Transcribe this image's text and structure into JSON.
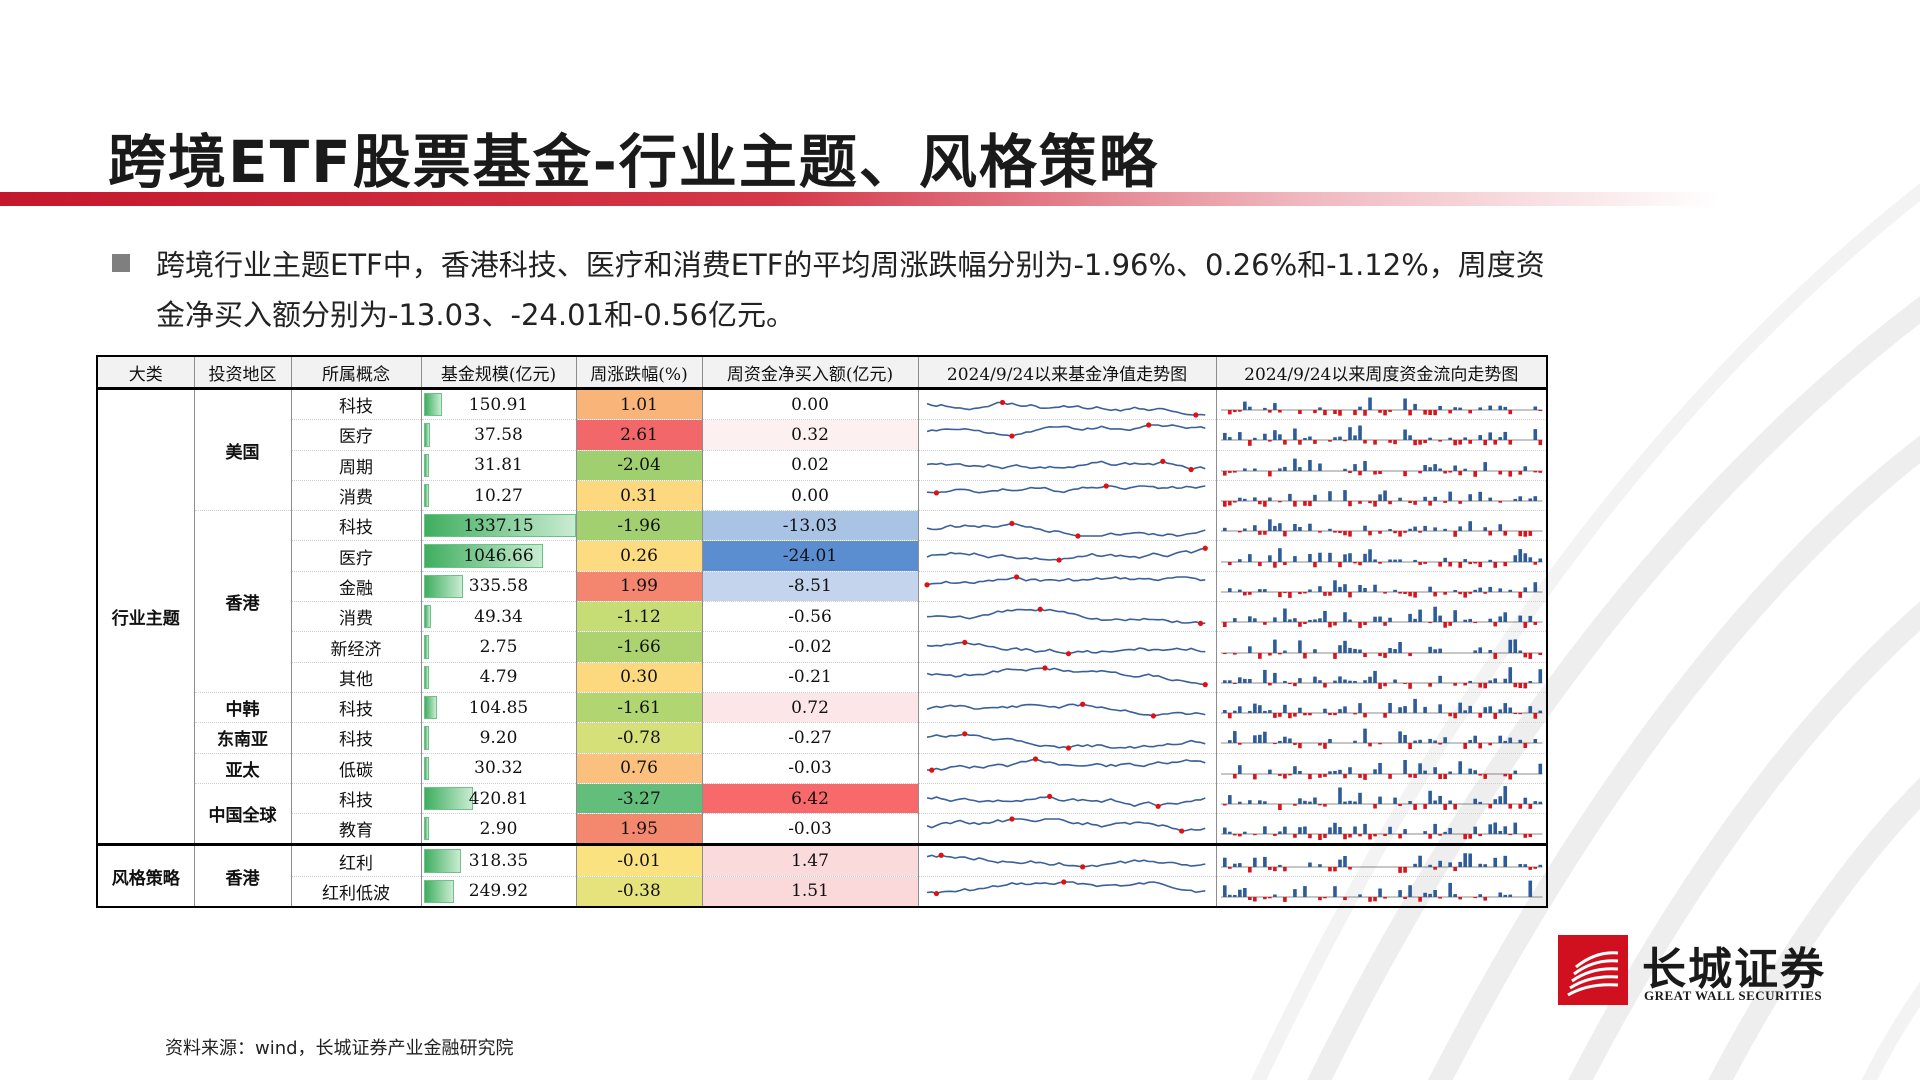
{
  "title": "跨境ETF股票基金-行业主题、风格策略",
  "bullet": "跨境行业主题ETF中，香港科技、医疗和消费ETF的平均周涨跌幅分别为-1.96%、0.26%和-1.12%，周度资金净买入额分别为-13.03、-24.01和-0.56亿元。",
  "table": {
    "headers": [
      "大类",
      "投资地区",
      "所属概念",
      "基金规模(亿元)",
      "周涨跌幅(%)",
      "周资金净买入额(亿元)",
      "2024/9/24以来基金净值走势图",
      "2024/9/24以来周度资金流向走势图"
    ],
    "groups": [
      {
        "category": "行业主题",
        "regions": [
          {
            "region": "美国",
            "rows": [
              {
                "concept": "科技",
                "size": "150.91",
                "size_frac": 0.113,
                "chg": "1.01",
                "chg_color": "#f9b47a",
                "flow": "0.00",
                "flow_color": "#ffffff"
              },
              {
                "concept": "医疗",
                "size": "37.58",
                "size_frac": 0.028,
                "chg": "2.61",
                "chg_color": "#f2676a",
                "flow": "0.32",
                "flow_color": "#fcf0f1"
              },
              {
                "concept": "周期",
                "size": "31.81",
                "size_frac": 0.024,
                "chg": "-2.04",
                "chg_color": "#9fcf6e",
                "flow": "0.02",
                "flow_color": "#ffffff"
              },
              {
                "concept": "消费",
                "size": "10.27",
                "size_frac": 0.008,
                "chg": "0.31",
                "chg_color": "#fcd97f",
                "flow": "0.00",
                "flow_color": "#ffffff"
              }
            ]
          },
          {
            "region": "香港",
            "rows": [
              {
                "concept": "科技",
                "size": "1337.15",
                "size_frac": 1.0,
                "chg": "-1.96",
                "chg_color": "#a2cf6f",
                "flow": "-13.03",
                "flow_color": "#a9c3e4"
              },
              {
                "concept": "医疗",
                "size": "1046.66",
                "size_frac": 0.783,
                "chg": "0.26",
                "chg_color": "#fddb80",
                "flow": "-24.01",
                "flow_color": "#5b8ed1"
              },
              {
                "concept": "金融",
                "size": "335.58",
                "size_frac": 0.251,
                "chg": "1.99",
                "chg_color": "#f4866f",
                "flow": "-8.51",
                "flow_color": "#c3d4ec"
              },
              {
                "concept": "消费",
                "size": "49.34",
                "size_frac": 0.037,
                "chg": "-1.12",
                "chg_color": "#c5dd74",
                "flow": "-0.56",
                "flow_color": "#ffffff"
              },
              {
                "concept": "新经济",
                "size": "2.75",
                "size_frac": 0.002,
                "chg": "-1.66",
                "chg_color": "#acd370",
                "flow": "-0.02",
                "flow_color": "#ffffff"
              },
              {
                "concept": "其他",
                "size": "4.79",
                "size_frac": 0.004,
                "chg": "0.30",
                "chg_color": "#fcd97f",
                "flow": "-0.21",
                "flow_color": "#ffffff"
              }
            ]
          },
          {
            "region": "中韩",
            "rows": [
              {
                "concept": "科技",
                "size": "104.85",
                "size_frac": 0.078,
                "chg": "-1.61",
                "chg_color": "#b0d571",
                "flow": "0.72",
                "flow_color": "#fce6e8"
              }
            ]
          },
          {
            "region": "东南亚",
            "rows": [
              {
                "concept": "科技",
                "size": "9.20",
                "size_frac": 0.007,
                "chg": "-0.78",
                "chg_color": "#d5e078",
                "flow": "-0.27",
                "flow_color": "#ffffff"
              }
            ]
          },
          {
            "region": "亚太",
            "rows": [
              {
                "concept": "低碳",
                "size": "30.32",
                "size_frac": 0.023,
                "chg": "0.76",
                "chg_color": "#fbc07d",
                "flow": "-0.03",
                "flow_color": "#ffffff"
              }
            ]
          },
          {
            "region": "中国全球",
            "rows": [
              {
                "concept": "科技",
                "size": "420.81",
                "size_frac": 0.315,
                "chg": "-3.27",
                "chg_color": "#63be7b",
                "flow": "6.42",
                "flow_color": "#f8696b"
              },
              {
                "concept": "教育",
                "size": "2.90",
                "size_frac": 0.002,
                "chg": "1.95",
                "chg_color": "#f4886f",
                "flow": "-0.03",
                "flow_color": "#ffffff"
              }
            ]
          }
        ]
      },
      {
        "category": "风格策略",
        "regions": [
          {
            "region": "香港",
            "rows": [
              {
                "concept": "红利",
                "size": "318.35",
                "size_frac": 0.238,
                "chg": "-0.01",
                "chg_color": "#f9e27f",
                "flow": "1.47",
                "flow_color": "#fbdadc"
              },
              {
                "concept": "红利低波",
                "size": "249.92",
                "size_frac": 0.187,
                "chg": "-0.38",
                "chg_color": "#e6e37c",
                "flow": "1.51",
                "flow_color": "#fbd8da"
              }
            ]
          }
        ]
      }
    ]
  },
  "colors": {
    "accent": "#c4172c",
    "nav_line": "#3a5f9a",
    "flow_pos": "#2e5c9a",
    "flow_neg": "#d9141c"
  },
  "source": "资料来源：wind，长城证券产业金融研究院",
  "logo": {
    "cn": "长城证券",
    "en": "GREAT WALL SECURITIES",
    "icon": "great-wall-logo-icon"
  }
}
